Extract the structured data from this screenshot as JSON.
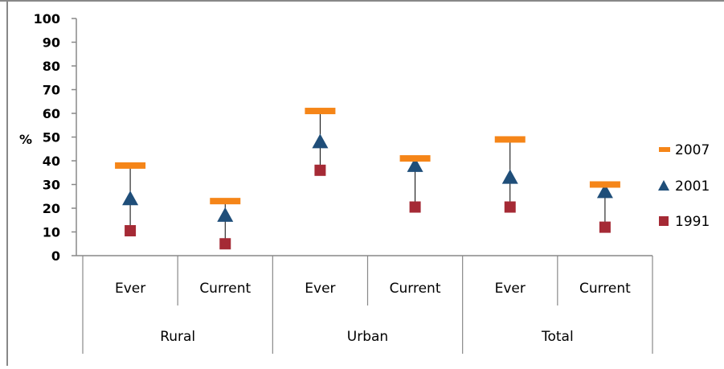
{
  "chart_data": {
    "type": "scatter",
    "title": "",
    "ylabel": "%",
    "xlabel": "",
    "ylim": [
      0,
      100
    ],
    "yticks": [
      "0",
      "10",
      "20",
      "30",
      "40",
      "50",
      "60",
      "70",
      "80",
      "90",
      "100"
    ],
    "categories": [
      "Ever",
      "Current",
      "Ever",
      "Current",
      "Ever",
      "Current"
    ],
    "groups": [
      {
        "label": "Rural",
        "span": 2
      },
      {
        "label": "Urban",
        "span": 2
      },
      {
        "label": "Total",
        "span": 2
      }
    ],
    "series": [
      {
        "name": "2007",
        "marker": "dash",
        "color": "#F58518",
        "values": [
          38,
          23,
          61,
          41,
          49,
          30
        ]
      },
      {
        "name": "2001",
        "marker": "triangle",
        "color": "#1F4E79",
        "values": [
          24,
          17,
          48,
          38,
          33,
          27
        ]
      },
      {
        "name": "1991",
        "marker": "square",
        "color": "#A52A35",
        "values": [
          10.5,
          5,
          36,
          20.5,
          20.5,
          12
        ]
      }
    ],
    "legend_position": "right",
    "grid": false
  }
}
